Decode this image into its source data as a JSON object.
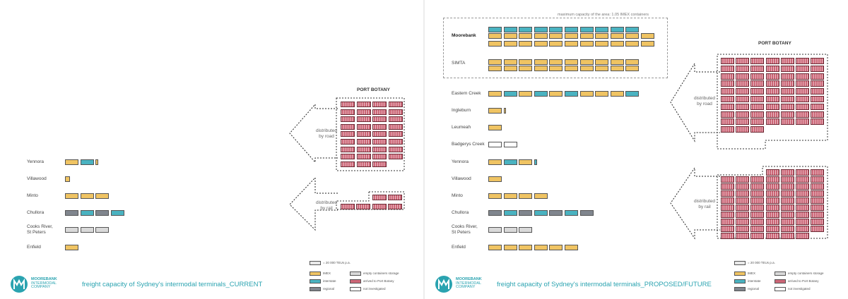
{
  "colors": {
    "imex": "#f0c463",
    "interstate": "#4ab3c1",
    "regional": "#80868e",
    "empty": "#d9d9d9",
    "not_investigated": "#ffffff",
    "port_botany": "#cc6677",
    "brand": "#2aa3b0"
  },
  "brand": {
    "name_line1": "MOOREBANK",
    "name_line2": "INTERMODAL",
    "name_line3": "COMPANY"
  },
  "legend": {
    "scale": "= 20 000 TEUs p.a.",
    "imex": "IMEX",
    "interstate": "interstate",
    "regional": "regional",
    "empty": "empty containers storage",
    "port_botany": "arrived to Port Botany",
    "not_investigated": "not investigated"
  },
  "current": {
    "footer_title": "freight capacity of Sydney's intermodal terminals_CURRENT",
    "port_botany_title": "PORT BOTANY",
    "road_label": "distributed\nby road",
    "rail_label": "distributed\nby rail",
    "terminals": [
      {
        "name": "Yennora",
        "units": [
          {
            "type": "imex",
            "fraction": 1
          },
          {
            "type": "interstate",
            "fraction": 1
          },
          {
            "type": "imex",
            "fraction": 0.2
          }
        ]
      },
      {
        "name": "Villawood",
        "units": [
          {
            "type": "imex",
            "fraction": 0.35
          }
        ]
      },
      {
        "name": "Minto",
        "units": [
          {
            "type": "imex",
            "fraction": 1
          },
          {
            "type": "imex",
            "fraction": 1
          },
          {
            "type": "imex",
            "fraction": 1
          }
        ]
      },
      {
        "name": "Chullora",
        "units": [
          {
            "type": "regional",
            "fraction": 1
          },
          {
            "type": "interstate",
            "fraction": 1
          },
          {
            "type": "regional",
            "fraction": 1
          },
          {
            "type": "interstate",
            "fraction": 1
          }
        ]
      },
      {
        "name": "Cooks River,\nSt Peters",
        "units": [
          {
            "type": "empty",
            "fraction": 1
          },
          {
            "type": "empty",
            "fraction": 1
          },
          {
            "type": "empty",
            "fraction": 1
          }
        ]
      },
      {
        "name": "Enfield",
        "units": [
          {
            "type": "imex",
            "fraction": 1
          }
        ]
      }
    ],
    "road_units": 35,
    "rail_units": 6
  },
  "future": {
    "footer_title": "freight capacity of Sydney's intermodal terminals_PROPOSED/FUTURE",
    "port_botany_title": "PORT BOTANY",
    "capacity_note": "maximum capacity of the area: 1.05 IMEX containers",
    "road_label": "distributed\nby road",
    "rail_label": "distributed\nby rail",
    "terminals_box": [
      {
        "name": "Moorebank",
        "bold": true,
        "rows": [
          [
            {
              "type": "interstate",
              "fraction": 1
            },
            {
              "type": "interstate",
              "fraction": 1
            },
            {
              "type": "interstate",
              "fraction": 1
            },
            {
              "type": "interstate",
              "fraction": 1
            },
            {
              "type": "interstate",
              "fraction": 1
            },
            {
              "type": "interstate",
              "fraction": 1
            },
            {
              "type": "interstate",
              "fraction": 1
            },
            {
              "type": "interstate",
              "fraction": 1
            },
            {
              "type": "interstate",
              "fraction": 1
            },
            {
              "type": "interstate",
              "fraction": 1
            }
          ],
          [
            {
              "type": "imex",
              "fraction": 1
            },
            {
              "type": "imex",
              "fraction": 1
            },
            {
              "type": "imex",
              "fraction": 1
            },
            {
              "type": "imex",
              "fraction": 1
            },
            {
              "type": "imex",
              "fraction": 1
            },
            {
              "type": "imex",
              "fraction": 1
            },
            {
              "type": "imex",
              "fraction": 1
            },
            {
              "type": "imex",
              "fraction": 1
            },
            {
              "type": "imex",
              "fraction": 1
            },
            {
              "type": "imex",
              "fraction": 1
            },
            {
              "type": "imex",
              "fraction": 1
            }
          ],
          [
            {
              "type": "imex",
              "fraction": 1
            },
            {
              "type": "imex",
              "fraction": 1
            },
            {
              "type": "imex",
              "fraction": 1
            },
            {
              "type": "imex",
              "fraction": 1
            },
            {
              "type": "imex",
              "fraction": 1
            },
            {
              "type": "imex",
              "fraction": 1
            },
            {
              "type": "imex",
              "fraction": 1
            },
            {
              "type": "imex",
              "fraction": 1
            },
            {
              "type": "imex",
              "fraction": 1
            },
            {
              "type": "imex",
              "fraction": 1
            },
            {
              "type": "imex",
              "fraction": 1
            }
          ]
        ]
      },
      {
        "name": "SIMTA",
        "bold": false,
        "rows": [
          [
            {
              "type": "imex",
              "fraction": 1
            },
            {
              "type": "imex",
              "fraction": 1
            },
            {
              "type": "imex",
              "fraction": 1
            },
            {
              "type": "imex",
              "fraction": 1
            },
            {
              "type": "imex",
              "fraction": 1
            },
            {
              "type": "imex",
              "fraction": 1
            },
            {
              "type": "imex",
              "fraction": 1
            },
            {
              "type": "imex",
              "fraction": 1
            },
            {
              "type": "imex",
              "fraction": 1
            },
            {
              "type": "imex",
              "fraction": 1
            }
          ],
          [
            {
              "type": "imex",
              "fraction": 1
            },
            {
              "type": "imex",
              "fraction": 1
            },
            {
              "type": "imex",
              "fraction": 1
            },
            {
              "type": "imex",
              "fraction": 1
            },
            {
              "type": "imex",
              "fraction": 1
            },
            {
              "type": "imex",
              "fraction": 1
            },
            {
              "type": "imex",
              "fraction": 1
            },
            {
              "type": "imex",
              "fraction": 1
            },
            {
              "type": "imex",
              "fraction": 1
            },
            {
              "type": "imex",
              "fraction": 1
            }
          ]
        ]
      }
    ],
    "terminals": [
      {
        "name": "Eastern Creek",
        "units": [
          {
            "type": "imex",
            "fraction": 1
          },
          {
            "type": "interstate",
            "fraction": 1
          },
          {
            "type": "imex",
            "fraction": 1
          },
          {
            "type": "interstate",
            "fraction": 1
          },
          {
            "type": "imex",
            "fraction": 1
          },
          {
            "type": "interstate",
            "fraction": 1
          },
          {
            "type": "imex",
            "fraction": 1
          },
          {
            "type": "imex",
            "fraction": 1
          },
          {
            "type": "imex",
            "fraction": 1
          },
          {
            "type": "interstate",
            "fraction": 1
          }
        ]
      },
      {
        "name": "Ingleburn",
        "units": [
          {
            "type": "imex",
            "fraction": 1
          },
          {
            "type": "imex",
            "fraction": 0.2
          }
        ]
      },
      {
        "name": "Leumeah",
        "units": [
          {
            "type": "imex",
            "fraction": 1
          }
        ]
      },
      {
        "name": "Badgerys Creek",
        "units": [
          {
            "type": "not_investigated",
            "fraction": 1
          },
          {
            "type": "not_investigated",
            "fraction": 1
          }
        ]
      },
      {
        "name": "Yennora",
        "units": [
          {
            "type": "imex",
            "fraction": 1
          },
          {
            "type": "interstate",
            "fraction": 1
          },
          {
            "type": "imex",
            "fraction": 1
          },
          {
            "type": "interstate",
            "fraction": 0.2
          }
        ]
      },
      {
        "name": "Villawood",
        "units": [
          {
            "type": "imex",
            "fraction": 1
          }
        ]
      },
      {
        "name": "Minto",
        "units": [
          {
            "type": "imex",
            "fraction": 1
          },
          {
            "type": "imex",
            "fraction": 1
          },
          {
            "type": "imex",
            "fraction": 1
          },
          {
            "type": "imex",
            "fraction": 1
          }
        ]
      },
      {
        "name": "Chullora",
        "units": [
          {
            "type": "regional",
            "fraction": 1
          },
          {
            "type": "interstate",
            "fraction": 1
          },
          {
            "type": "regional",
            "fraction": 1
          },
          {
            "type": "interstate",
            "fraction": 1
          },
          {
            "type": "regional",
            "fraction": 1
          },
          {
            "type": "interstate",
            "fraction": 1
          },
          {
            "type": "regional",
            "fraction": 1
          }
        ]
      },
      {
        "name": "Cooks River,\nSt Peters",
        "units": [
          {
            "type": "empty",
            "fraction": 1
          },
          {
            "type": "empty",
            "fraction": 1
          },
          {
            "type": "empty",
            "fraction": 1
          }
        ]
      },
      {
        "name": "Enfield",
        "units": [
          {
            "type": "imex",
            "fraction": 1
          },
          {
            "type": "imex",
            "fraction": 1
          },
          {
            "type": "imex",
            "fraction": 1
          },
          {
            "type": "imex",
            "fraction": 1
          },
          {
            "type": "imex",
            "fraction": 1
          },
          {
            "type": "imex",
            "fraction": 1
          }
        ]
      }
    ],
    "road_units": 66,
    "rail_units": 66
  }
}
